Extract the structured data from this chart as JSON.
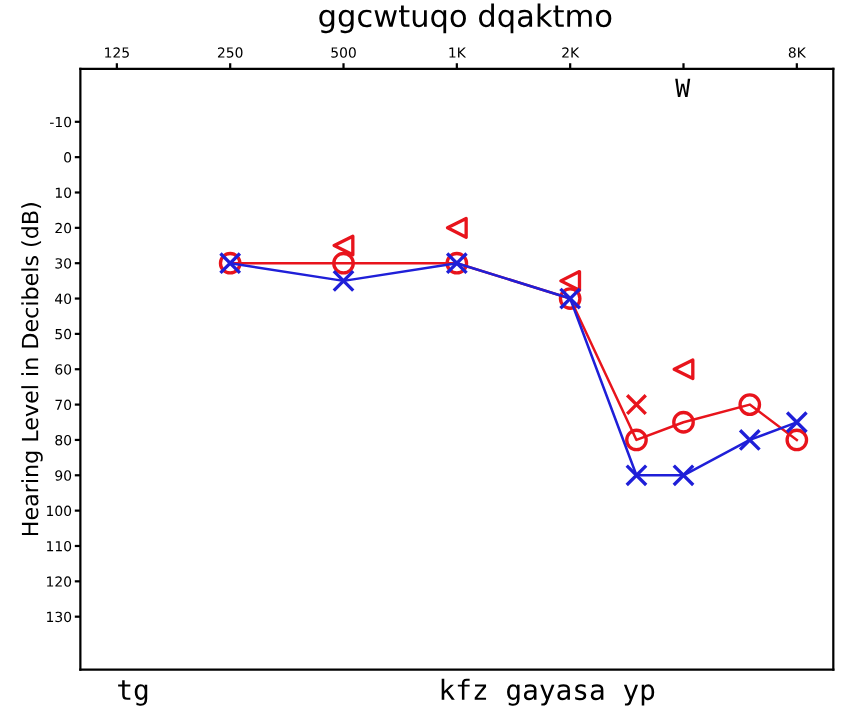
{
  "chart_data": {
    "type": "line",
    "title": "ggcwtuqo dqaktmo",
    "ylabel": "Hearing Level in Decibels (dB)",
    "annotations": [
      "W",
      "tg",
      "kfz gayasa yp"
    ],
    "x": [
      250,
      500,
      1000,
      2000,
      3000,
      4000,
      6000,
      8000
    ],
    "series": [
      {
        "color": "#e8141c",
        "marker": "circle",
        "values": [
          30,
          30,
          30,
          40,
          80,
          75,
          70,
          80
        ]
      },
      {
        "color": "#1f1fd8",
        "marker": "cross",
        "values": [
          30,
          35,
          30,
          40,
          90,
          90,
          80,
          75
        ]
      },
      {
        "type": "scatter",
        "color": "#e8141c",
        "marker": "triangle",
        "x": [
          500,
          1000,
          2000,
          4000
        ],
        "values": [
          25,
          20,
          35,
          60
        ]
      },
      {
        "type": "scatter",
        "color": "#e8141c",
        "marker": "cross",
        "x": [
          3000
        ],
        "values": [
          70
        ]
      }
    ],
    "log": "x",
    "xlim": [
      100,
      10000
    ],
    "ylim": [
      145,
      -25
    ],
    "xticks": [
      125,
      250,
      500,
      {
        "value": 1000,
        "label": "1K"
      },
      {
        "value": 2000,
        "label": "2K"
      },
      {
        "value": 4000,
        "label": null
      },
      {
        "value": 8000,
        "label": "8K"
      }
    ],
    "yticks": [
      -10,
      0,
      10,
      20,
      30,
      40,
      50,
      60,
      70,
      80,
      90,
      100,
      110,
      120,
      130
    ],
    "grid": false,
    "legend": false
  }
}
